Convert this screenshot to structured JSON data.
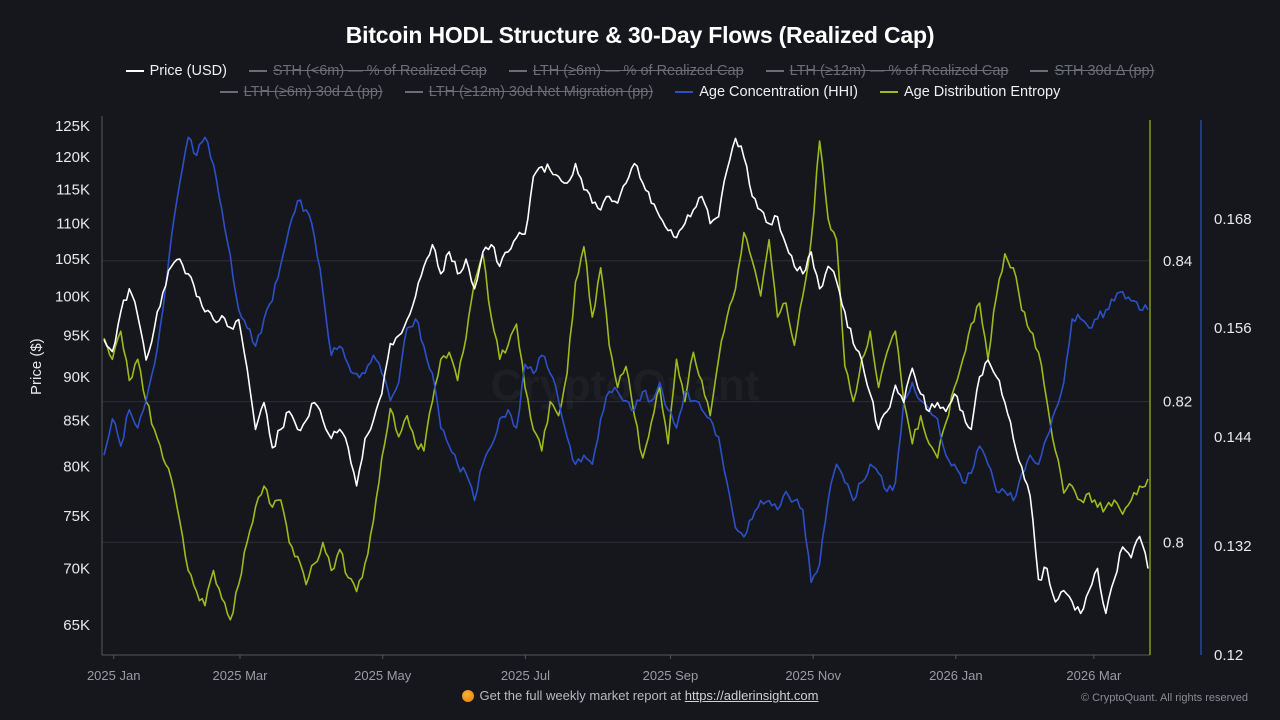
{
  "chart_data": {
    "type": "line",
    "title": "Bitcoin HODL Structure & 30-Day Flows (Realized Cap)",
    "xlabel": "",
    "ylabel": "Price ($)",
    "x_range": [
      "2025-01-01",
      "2026-03-25"
    ],
    "x_ticks": [
      "2025 Jan",
      "2025 Mar",
      "2025 May",
      "2025 Jul",
      "2025 Sep",
      "2025 Nov",
      "2026 Jan",
      "2026 Mar"
    ],
    "y_axes": {
      "price": {
        "scale": "log",
        "ticks": [
          "65K",
          "70K",
          "75K",
          "80K",
          "85K",
          "90K",
          "95K",
          "100K",
          "105K",
          "110K",
          "115K",
          "120K",
          "125K"
        ],
        "tick_values": [
          65000,
          70000,
          75000,
          80000,
          85000,
          90000,
          95000,
          100000,
          105000,
          110000,
          115000,
          120000,
          125000
        ],
        "range": [
          62500,
          126000
        ]
      },
      "entropy": {
        "ticks": [
          "0.8",
          "0.82",
          "0.84"
        ],
        "tick_values": [
          0.8,
          0.82,
          0.84
        ],
        "range": [
          0.784,
          0.86
        ],
        "color": "#9dbb1e"
      },
      "hhi": {
        "ticks": [
          "0.12",
          "0.132",
          "0.144",
          "0.156",
          "0.168"
        ],
        "tick_values": [
          0.12,
          0.132,
          0.144,
          0.156,
          0.168
        ],
        "range": [
          0.12,
          0.1789
        ],
        "color": "#2b50c8"
      }
    },
    "grid": true,
    "legend_position": "top-center",
    "legend": [
      {
        "name": "Price (USD)",
        "color": "#ffffff",
        "visible": true
      },
      {
        "name": "STH (<6m) — % of Realized Cap",
        "color": "#6b6d74",
        "visible": false
      },
      {
        "name": "LTH (≥6m) — % of Realized Cap",
        "color": "#6b6d74",
        "visible": false
      },
      {
        "name": "LTH (≥12m) — % of Realized Cap",
        "color": "#6b6d74",
        "visible": false
      },
      {
        "name": "STH 30d Δ (pp)",
        "color": "#6b6d74",
        "visible": false
      },
      {
        "name": "LTH (≥6m) 30d Δ (pp)",
        "color": "#6b6d74",
        "visible": false
      },
      {
        "name": "LTH (≥12m) 30d Net Migration (pp)",
        "color": "#6b6d74",
        "visible": false
      },
      {
        "name": "Age Concentration (HHI)",
        "color": "#2b50c8",
        "visible": true
      },
      {
        "name": "Age Distribution Entropy",
        "color": "#9dbb1e",
        "visible": true
      }
    ],
    "series_note": "Approximate weekly-ish samples reconstructed from the figure, Jan 2025 → late Mar 2026",
    "series": [
      {
        "name": "Price (USD)",
        "axis": "price",
        "color": "#ffffff",
        "values": [
          94500,
          93000,
          98000,
          101000,
          97500,
          92000,
          96000,
          100500,
          104000,
          105000,
          103000,
          100000,
          98000,
          97000,
          97500,
          96000,
          97000,
          91000,
          84000,
          87000,
          82000,
          84000,
          86000,
          84000,
          85000,
          87000,
          85000,
          83000,
          84000,
          82000,
          78000,
          83000,
          85000,
          88000,
          94000,
          95000,
          97000,
          100000,
          104000,
          107000,
          103000,
          106000,
          103000,
          105000,
          101000,
          106000,
          107000,
          104000,
          106000,
          108000,
          108500,
          117000,
          118500,
          118000,
          117000,
          116000,
          119000,
          115000,
          113000,
          112000,
          114000,
          113000,
          116000,
          119000,
          116000,
          113000,
          111000,
          109000,
          108000,
          110000,
          112000,
          114000,
          110000,
          111000,
          118000,
          123000,
          120000,
          114000,
          112000,
          110000,
          111000,
          107000,
          104000,
          103000,
          106000,
          101000,
          104000,
          102000,
          98000,
          94000,
          92000,
          88000,
          84000,
          86000,
          89000,
          87000,
          91000,
          88000,
          86000,
          87000,
          86000,
          88000,
          86000,
          84000,
          90000,
          92000,
          90000,
          87000,
          83000,
          80000,
          77000,
          69000,
          70000,
          67000,
          68000,
          67000,
          66000,
          68000,
          70000,
          66000,
          69000,
          72000,
          71000,
          73000,
          70000
        ]
      },
      {
        "name": "Age Concentration (HHI)",
        "axis": "hhi",
        "color": "#2b50c8",
        "values": [
          0.142,
          0.146,
          0.143,
          0.147,
          0.145,
          0.148,
          0.152,
          0.158,
          0.166,
          0.172,
          0.177,
          0.175,
          0.177,
          0.174,
          0.169,
          0.164,
          0.158,
          0.156,
          0.154,
          0.157,
          0.159,
          0.163,
          0.167,
          0.17,
          0.169,
          0.166,
          0.16,
          0.153,
          0.154,
          0.152,
          0.151,
          0.151,
          0.153,
          0.151,
          0.148,
          0.15,
          0.156,
          0.157,
          0.154,
          0.151,
          0.145,
          0.143,
          0.141,
          0.14,
          0.137,
          0.141,
          0.143,
          0.146,
          0.147,
          0.145,
          0.152,
          0.151,
          0.153,
          0.151,
          0.148,
          0.144,
          0.141,
          0.142,
          0.141,
          0.146,
          0.149,
          0.149,
          0.148,
          0.147,
          0.149,
          0.148,
          0.15,
          0.147,
          0.145,
          0.149,
          0.148,
          0.147,
          0.146,
          0.144,
          0.139,
          0.134,
          0.133,
          0.135,
          0.137,
          0.137,
          0.136,
          0.138,
          0.137,
          0.136,
          0.128,
          0.13,
          0.137,
          0.141,
          0.139,
          0.137,
          0.139,
          0.141,
          0.14,
          0.138,
          0.139,
          0.148,
          0.15,
          0.148,
          0.147,
          0.146,
          0.142,
          0.141,
          0.139,
          0.14,
          0.143,
          0.141,
          0.138,
          0.138,
          0.137,
          0.14,
          0.142,
          0.141,
          0.144,
          0.147,
          0.15,
          0.157,
          0.157,
          0.156,
          0.157,
          0.158,
          0.159,
          0.16,
          0.159,
          0.158,
          0.158
        ]
      },
      {
        "name": "Age Distribution Entropy",
        "axis": "entropy",
        "color": "#9dbb1e",
        "values": [
          0.829,
          0.826,
          0.83,
          0.823,
          0.826,
          0.82,
          0.816,
          0.812,
          0.809,
          0.803,
          0.796,
          0.793,
          0.791,
          0.796,
          0.792,
          0.789,
          0.794,
          0.8,
          0.805,
          0.808,
          0.805,
          0.806,
          0.8,
          0.798,
          0.794,
          0.797,
          0.8,
          0.796,
          0.799,
          0.795,
          0.793,
          0.797,
          0.803,
          0.812,
          0.819,
          0.815,
          0.818,
          0.814,
          0.813,
          0.82,
          0.826,
          0.827,
          0.823,
          0.829,
          0.837,
          0.841,
          0.832,
          0.826,
          0.828,
          0.831,
          0.822,
          0.816,
          0.813,
          0.82,
          0.818,
          0.824,
          0.837,
          0.842,
          0.832,
          0.839,
          0.828,
          0.822,
          0.825,
          0.818,
          0.812,
          0.817,
          0.822,
          0.814,
          0.826,
          0.82,
          0.827,
          0.823,
          0.818,
          0.826,
          0.832,
          0.836,
          0.844,
          0.84,
          0.835,
          0.843,
          0.832,
          0.834,
          0.828,
          0.835,
          0.843,
          0.857,
          0.846,
          0.843,
          0.825,
          0.82,
          0.826,
          0.83,
          0.822,
          0.827,
          0.83,
          0.82,
          0.814,
          0.818,
          0.814,
          0.812,
          0.817,
          0.822,
          0.826,
          0.831,
          0.834,
          0.826,
          0.835,
          0.841,
          0.839,
          0.833,
          0.83,
          0.827,
          0.82,
          0.813,
          0.807,
          0.808,
          0.806,
          0.807,
          0.805,
          0.805,
          0.806,
          0.804,
          0.806,
          0.808,
          0.809
        ]
      }
    ],
    "watermark": "CryptoQuant"
  },
  "footer": {
    "prefix": "Get the full weekly market report at ",
    "link": "https://adlerinsight.com",
    "copyright": "© CryptoQuant. All rights reserved"
  }
}
